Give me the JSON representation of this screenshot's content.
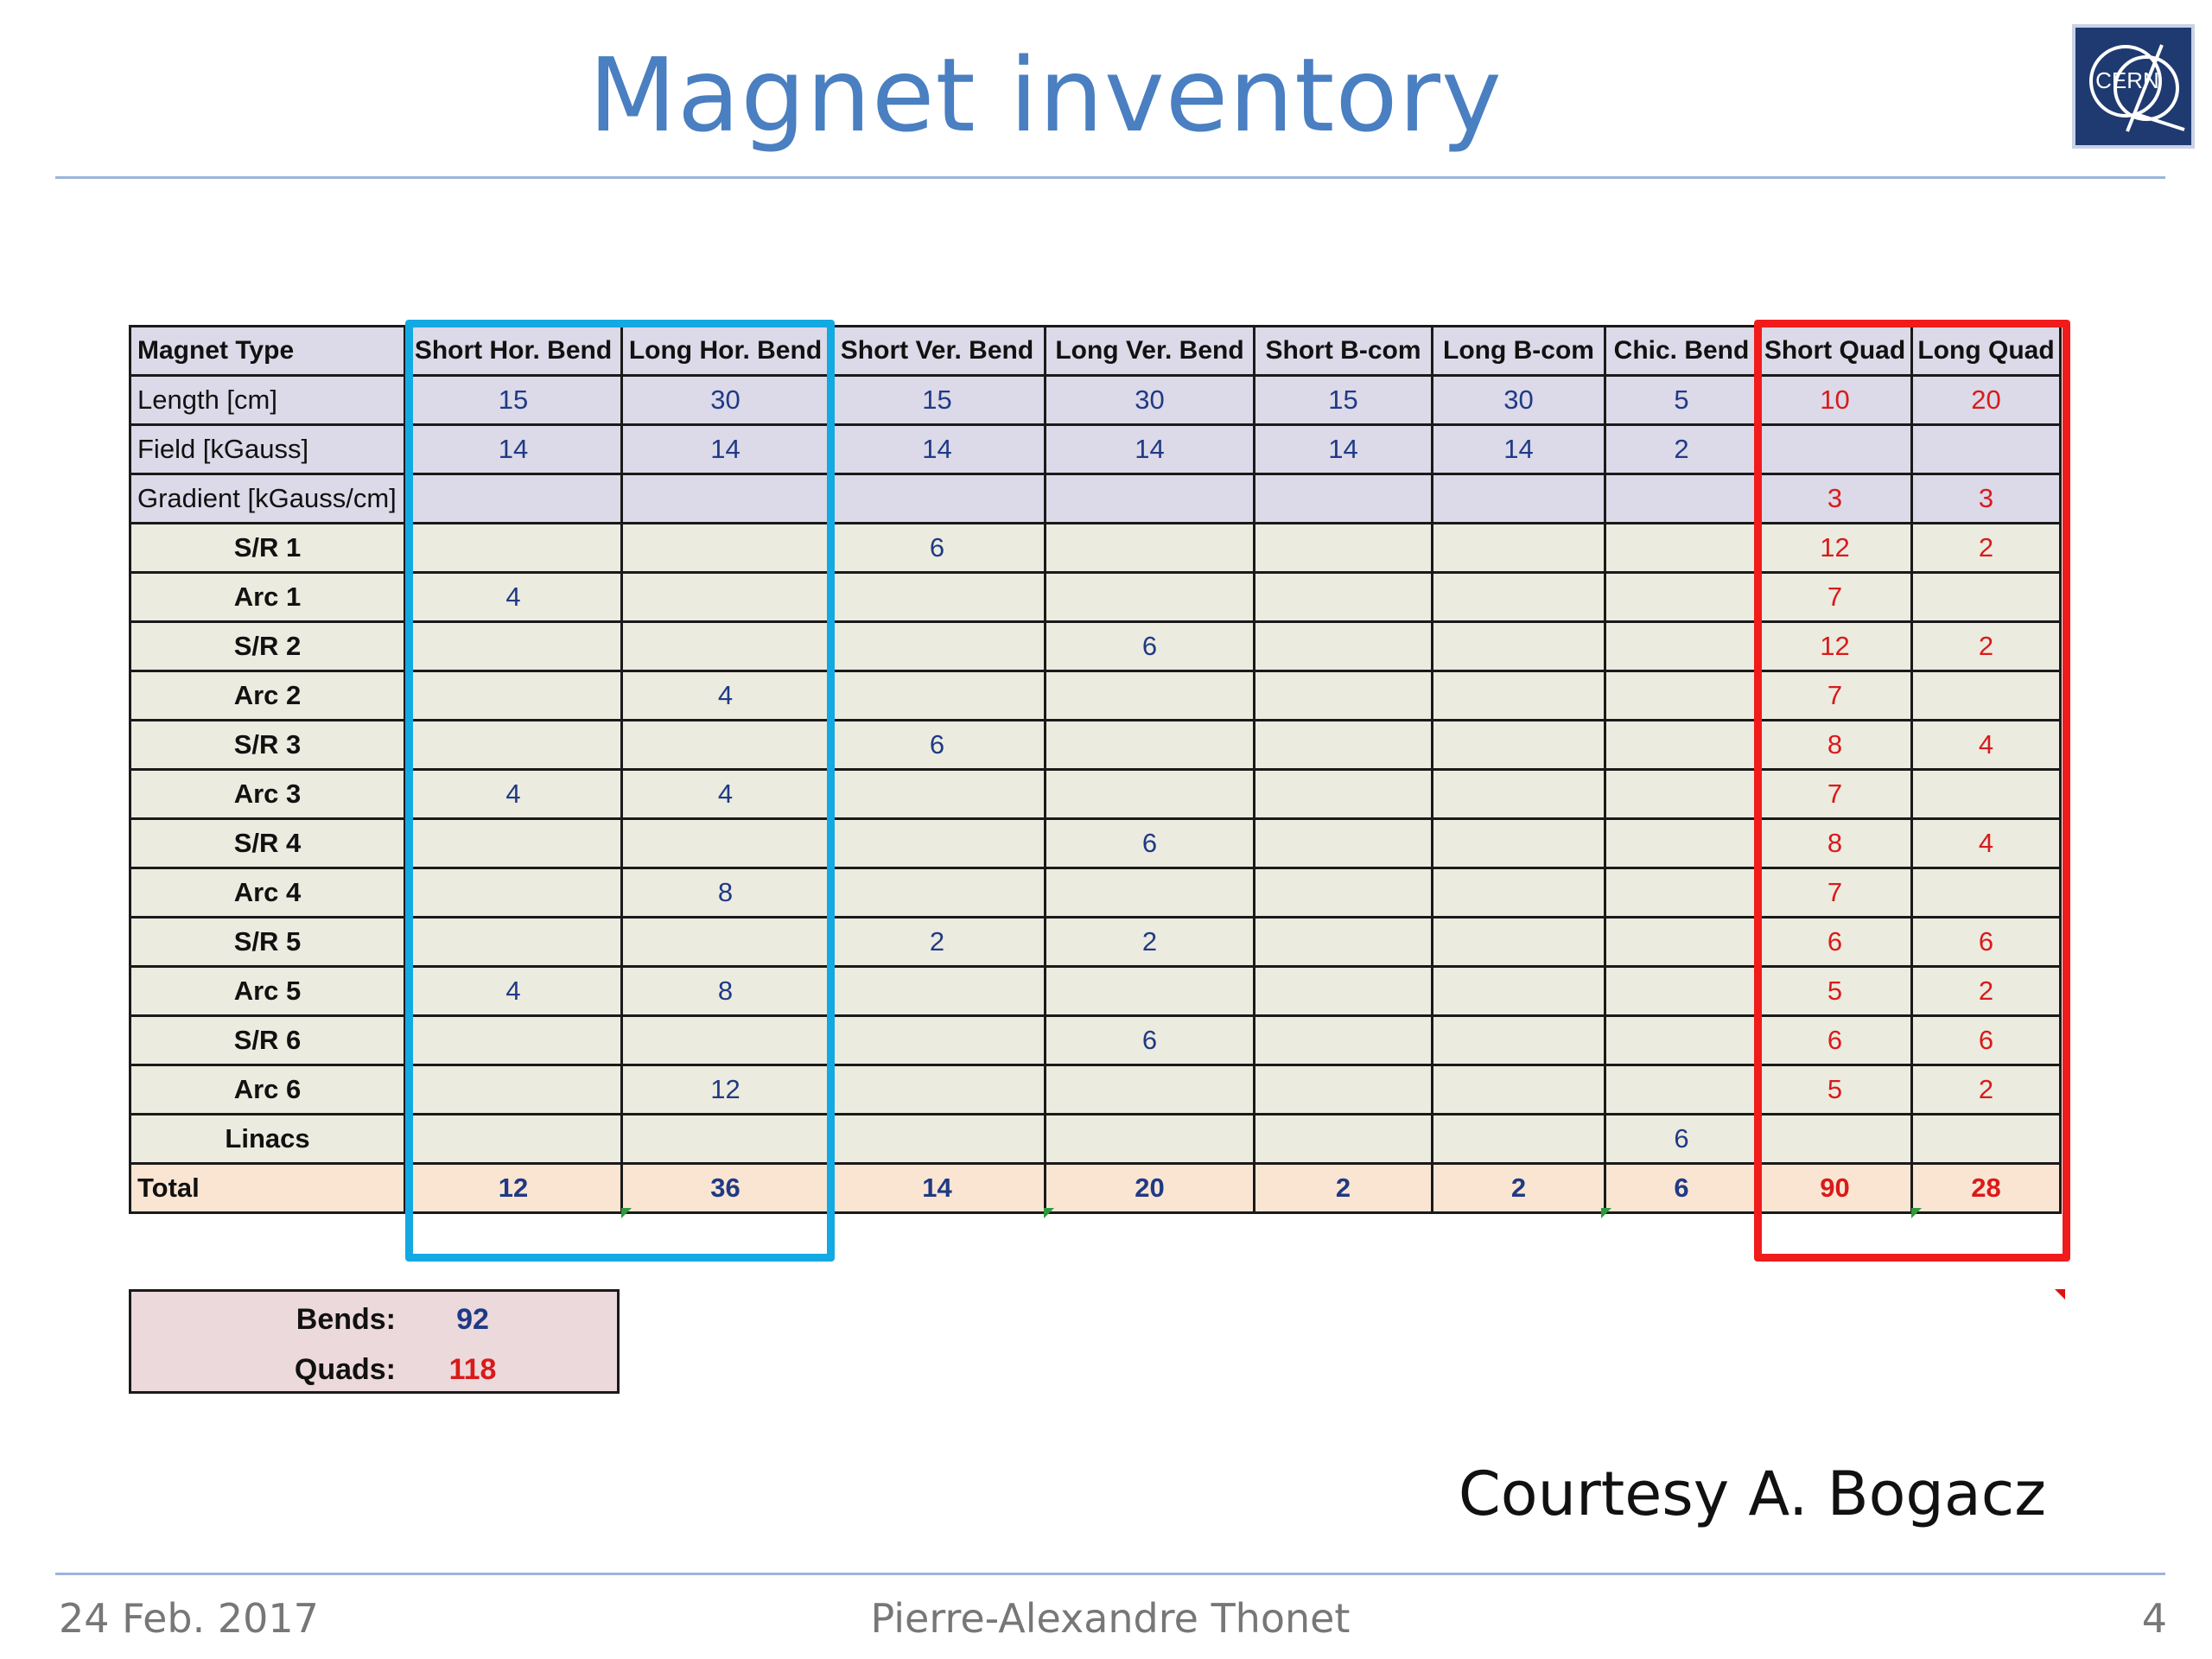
{
  "title": "Magnet inventory",
  "logo_text": "CERN",
  "table": {
    "header": {
      "label": "Magnet Type",
      "columns": [
        "Short Hor. Bend",
        "Long Hor. Bend",
        "Short Ver. Bend",
        "Long Ver. Bend",
        "Short B-com",
        "Long B-com",
        "Chic. Bend",
        "Short Quad",
        "Long Quad"
      ]
    },
    "params": [
      {
        "label": "Length [cm]",
        "values": [
          "15",
          "30",
          "15",
          "30",
          "15",
          "30",
          "5",
          "10",
          "20"
        ]
      },
      {
        "label": "Field [kGauss]",
        "values": [
          "14",
          "14",
          "14",
          "14",
          "14",
          "14",
          "2",
          "",
          ""
        ]
      },
      {
        "label": "Gradient [kGauss/cm]",
        "values": [
          "",
          "",
          "",
          "",
          "",
          "",
          "",
          "3",
          "3"
        ]
      }
    ],
    "rows": [
      {
        "label": "S/R 1",
        "values": [
          "",
          "",
          "6",
          "",
          "",
          "",
          "",
          "12",
          "2"
        ]
      },
      {
        "label": "Arc 1",
        "values": [
          "4",
          "",
          "",
          "",
          "",
          "",
          "",
          "7",
          ""
        ]
      },
      {
        "label": "S/R 2",
        "values": [
          "",
          "",
          "",
          "6",
          "",
          "",
          "",
          "12",
          "2"
        ]
      },
      {
        "label": "Arc 2",
        "values": [
          "",
          "4",
          "",
          "",
          "",
          "",
          "",
          "7",
          ""
        ]
      },
      {
        "label": "S/R 3",
        "values": [
          "",
          "",
          "6",
          "",
          "",
          "",
          "",
          "8",
          "4"
        ]
      },
      {
        "label": "Arc 3",
        "values": [
          "4",
          "4",
          "",
          "",
          "",
          "",
          "",
          "7",
          ""
        ]
      },
      {
        "label": "S/R 4",
        "values": [
          "",
          "",
          "",
          "6",
          "",
          "",
          "",
          "8",
          "4"
        ]
      },
      {
        "label": "Arc 4",
        "values": [
          "",
          "8",
          "",
          "",
          "",
          "",
          "",
          "7",
          ""
        ]
      },
      {
        "label": "S/R 5",
        "values": [
          "",
          "",
          "2",
          "2",
          "",
          "",
          "",
          "6",
          "6"
        ]
      },
      {
        "label": "Arc 5",
        "values": [
          "4",
          "8",
          "",
          "",
          "",
          "",
          "",
          "5",
          "2"
        ]
      },
      {
        "label": "S/R 6",
        "values": [
          "",
          "",
          "",
          "6",
          "",
          "",
          "",
          "6",
          "6"
        ]
      },
      {
        "label": "Arc 6",
        "values": [
          "",
          "12",
          "",
          "",
          "",
          "",
          "",
          "5",
          "2"
        ]
      },
      {
        "label": "Linacs",
        "values": [
          "",
          "",
          "",
          "",
          "",
          "",
          "6",
          "",
          ""
        ]
      }
    ],
    "total": {
      "label": "Total",
      "values": [
        "12",
        "36",
        "14",
        "20",
        "2",
        "2",
        "6",
        "90",
        "28"
      ]
    }
  },
  "summary": {
    "bends_label": "Bends:",
    "bends_value": "92",
    "quads_label": "Quads:",
    "quads_value": "118"
  },
  "courtesy": "Courtesy A. Bogacz",
  "footer": {
    "date": "24 Feb. 2017",
    "author": "Pierre-Alexandre Thonet",
    "page": "4"
  },
  "colors": {
    "title": "#4a7fc1",
    "bend_highlight": "#13a9e2",
    "quad_highlight": "#f01c1c",
    "bend_values": "#1f3a85",
    "quad_values": "#d91a1a"
  }
}
